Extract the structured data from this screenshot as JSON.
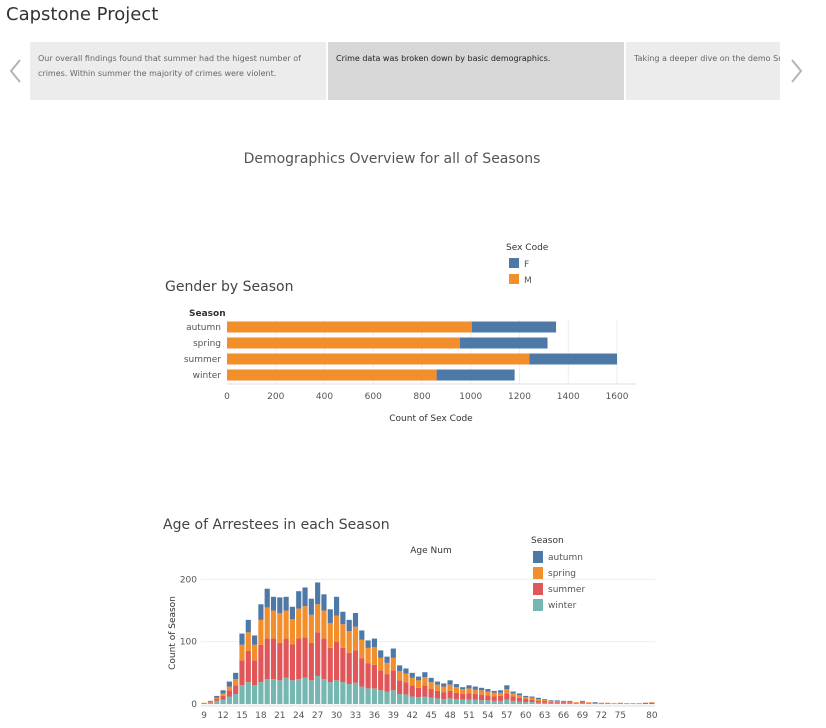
{
  "app": {
    "title": "Capstone Project"
  },
  "story_points": [
    {
      "text": "Our overall findings found that summer had the higest number of crimes. Within summer the majority of crimes were violent."
    },
    {
      "text": "Crime data was broken down by basic demographics."
    },
    {
      "text": "Taking a deeper dive on the demo Summer. Summer has more male year olds committing the most cr"
    }
  ],
  "dashboard": {
    "title": "Demographics Overview for all of Seasons"
  },
  "colors": {
    "autumn": "#4e79a7",
    "spring": "#f28e2b",
    "summer": "#e15759",
    "winter": "#76b7b2",
    "F": "#4e79a7",
    "M": "#f28e2b"
  },
  "chart_data": [
    {
      "type": "bar",
      "orientation": "horizontal",
      "stacked": true,
      "title": "Gender by Season",
      "row_header": "Season",
      "xlabel": "Count of Sex Code",
      "xlim": [
        0,
        1600
      ],
      "x_ticks": [
        "0",
        "200",
        "400",
        "600",
        "800",
        "1000",
        "1200",
        "1400",
        "1600"
      ],
      "categories": [
        "autumn",
        "spring",
        "summer",
        "winter"
      ],
      "legend": {
        "title": "Sex Code",
        "items": [
          "F",
          "M"
        ],
        "placement": "top-right"
      },
      "series": [
        {
          "name": "M",
          "values": [
            1005,
            955,
            1240,
            860
          ]
        },
        {
          "name": "F",
          "values": [
            345,
            360,
            360,
            320
          ]
        }
      ]
    },
    {
      "type": "bar",
      "stacked": true,
      "title": "Age of Arrestees in each Season",
      "column_header": "Age Num",
      "ylabel": "Count of Season",
      "ylim": [
        0,
        215
      ],
      "y_ticks": [
        "0",
        "100",
        "200"
      ],
      "x_ticks": [
        "9",
        "12",
        "15",
        "18",
        "21",
        "24",
        "27",
        "30",
        "33",
        "36",
        "39",
        "42",
        "45",
        "48",
        "51",
        "54",
        "57",
        "60",
        "63",
        "66",
        "69",
        "72",
        "75",
        "80"
      ],
      "legend": {
        "title": "Season",
        "items": [
          "autumn",
          "spring",
          "summer",
          "winter"
        ],
        "placement": "top-right"
      },
      "categories": [
        "9",
        "10",
        "11",
        "12",
        "13",
        "14",
        "15",
        "16",
        "17",
        "18",
        "19",
        "20",
        "21",
        "22",
        "23",
        "24",
        "25",
        "26",
        "27",
        "28",
        "29",
        "30",
        "31",
        "32",
        "33",
        "34",
        "35",
        "36",
        "37",
        "38",
        "39",
        "40",
        "41",
        "42",
        "43",
        "44",
        "45",
        "46",
        "47",
        "48",
        "49",
        "50",
        "51",
        "52",
        "53",
        "54",
        "55",
        "56",
        "57",
        "58",
        "59",
        "60",
        "61",
        "62",
        "63",
        "64",
        "65",
        "66",
        "67",
        "68",
        "69",
        "70",
        "71",
        "72",
        "73",
        "74",
        "75",
        "76",
        "77",
        "78",
        "79",
        "80"
      ],
      "series": [
        {
          "name": "autumn",
          "values": [
            0,
            1,
            3,
            5,
            8,
            10,
            18,
            20,
            15,
            25,
            30,
            22,
            25,
            22,
            20,
            28,
            30,
            26,
            35,
            26,
            22,
            30,
            20,
            18,
            22,
            15,
            12,
            14,
            12,
            10,
            15,
            9,
            8,
            8,
            6,
            8,
            7,
            5,
            5,
            7,
            5,
            3,
            5,
            5,
            4,
            4,
            3,
            4,
            6,
            3,
            3,
            2,
            2,
            2,
            1,
            1,
            1,
            1,
            1,
            0,
            1,
            0,
            1,
            0,
            0,
            0,
            0,
            0,
            0,
            0,
            0,
            0
          ]
        },
        {
          "name": "spring",
          "values": [
            1,
            1,
            2,
            4,
            6,
            10,
            25,
            30,
            25,
            40,
            50,
            45,
            48,
            45,
            40,
            48,
            50,
            45,
            45,
            45,
            40,
            42,
            38,
            35,
            38,
            30,
            25,
            28,
            20,
            18,
            20,
            15,
            14,
            12,
            12,
            13,
            11,
            10,
            9,
            10,
            9,
            8,
            8,
            7,
            7,
            6,
            6,
            5,
            7,
            5,
            4,
            3,
            3,
            3,
            2,
            2,
            2,
            1,
            1,
            1,
            1,
            1,
            1,
            0,
            1,
            0,
            1,
            0,
            0,
            0,
            0,
            1
          ]
        },
        {
          "name": "summer",
          "values": [
            1,
            1,
            3,
            6,
            10,
            14,
            40,
            50,
            40,
            60,
            65,
            65,
            60,
            63,
            58,
            65,
            65,
            60,
            70,
            65,
            55,
            62,
            55,
            50,
            52,
            45,
            40,
            38,
            32,
            28,
            32,
            22,
            20,
            18,
            15,
            18,
            14,
            12,
            11,
            12,
            10,
            9,
            10,
            9,
            9,
            8,
            7,
            8,
            10,
            7,
            6,
            5,
            4,
            3,
            3,
            2,
            2,
            2,
            2,
            1,
            2,
            1,
            1,
            1,
            1,
            1,
            1,
            1,
            1,
            1,
            2,
            2
          ]
        },
        {
          "name": "winter",
          "values": [
            0,
            2,
            5,
            7,
            12,
            16,
            30,
            35,
            30,
            35,
            40,
            40,
            38,
            42,
            38,
            40,
            42,
            38,
            45,
            40,
            35,
            38,
            35,
            32,
            34,
            28,
            25,
            25,
            22,
            20,
            22,
            16,
            15,
            12,
            11,
            12,
            10,
            9,
            8,
            9,
            8,
            7,
            7,
            7,
            6,
            6,
            5,
            5,
            7,
            5,
            4,
            3,
            3,
            2,
            2,
            1,
            1,
            1,
            1,
            1,
            1,
            1,
            0,
            1,
            0,
            0,
            0,
            0,
            0,
            0,
            0,
            0
          ]
        }
      ]
    }
  ]
}
